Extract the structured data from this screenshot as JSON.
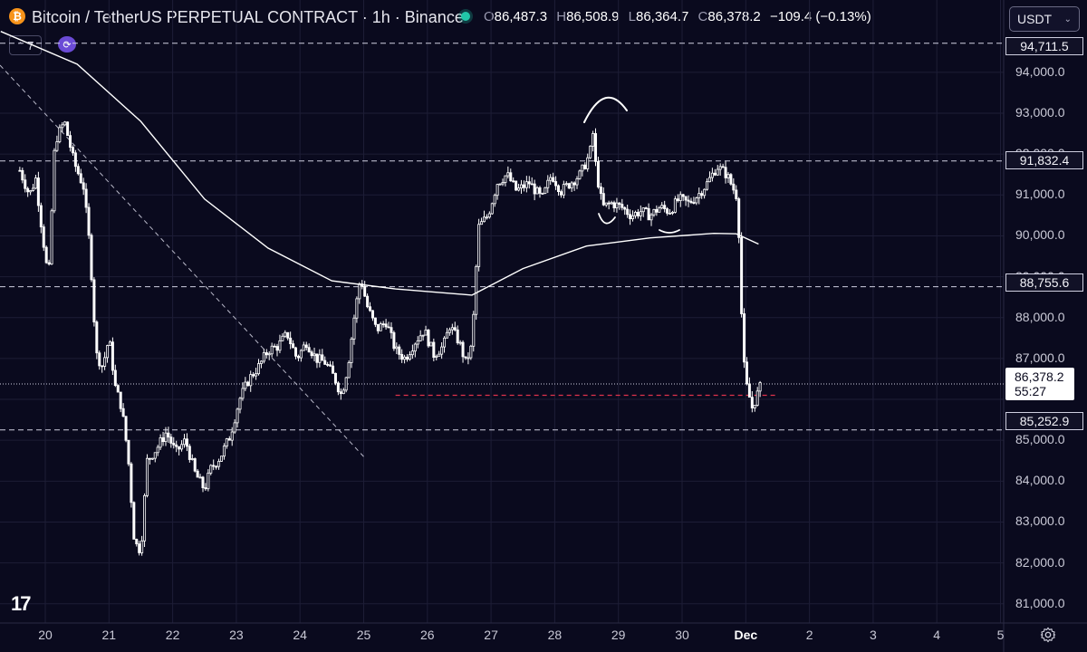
{
  "header": {
    "logo_glyph": "₿",
    "title": "Bitcoin / TetherUS PERPETUAL CONTRACT · 1h · Binance",
    "ohlc": [
      {
        "label": "O",
        "value": "86,487.3"
      },
      {
        "label": "H",
        "value": "86,508.9"
      },
      {
        "label": "L",
        "value": "86,364.7"
      },
      {
        "label": "C",
        "value": "86,378.2"
      }
    ],
    "change": "−109.4 (−0.13%)",
    "indicator_count": "7",
    "indicator_chevron": "⌃",
    "currency": "USDT",
    "currency_chevron": "⌄"
  },
  "price_axis": {
    "ticks": [
      "94,000.0",
      "93,000.0",
      "92,000.0",
      "91,000.0",
      "90,000.0",
      "89,000.0",
      "88,000.0",
      "87,000.0",
      "85,000.0",
      "84,000.0",
      "83,000.0",
      "82,000.0",
      "81,000.0"
    ],
    "level_labels": [
      "94,711.5",
      "91,832.4",
      "88,755.6",
      "85,252.9"
    ],
    "current_price": "86,378.2",
    "countdown": "55:27"
  },
  "time_axis": {
    "labels": [
      "20",
      "21",
      "22",
      "23",
      "24",
      "25",
      "26",
      "27",
      "28",
      "29",
      "30",
      "Dec",
      "2",
      "3",
      "4",
      "5"
    ],
    "bold_label": "Dec"
  },
  "watermark": "17",
  "colors": {
    "background": "#0a0a1e",
    "candles": "#ffffff",
    "moving_average": "#ffffff",
    "support_line": "#e0334b",
    "status_dot": "#21c7a8",
    "accent_icon": "#6b4bd6"
  },
  "chart_data": {
    "type": "candlestick",
    "symbol": "BTCUSDT.P",
    "timeframe": "1h",
    "ylim": [
      80600,
      95100
    ],
    "x": [
      "20",
      "21",
      "22",
      "23",
      "24",
      "25",
      "26",
      "27",
      "28",
      "29",
      "30",
      "Dec"
    ],
    "close_path": [
      [
        19.6,
        91600
      ],
      [
        19.75,
        91000
      ],
      [
        19.85,
        91400
      ],
      [
        19.95,
        90100
      ],
      [
        20.05,
        88900
      ],
      [
        20.15,
        92300
      ],
      [
        20.3,
        92800
      ],
      [
        20.45,
        91800
      ],
      [
        20.6,
        91200
      ],
      [
        20.7,
        89700
      ],
      [
        20.8,
        87100
      ],
      [
        20.9,
        86800
      ],
      [
        21.0,
        87500
      ],
      [
        21.1,
        86300
      ],
      [
        21.2,
        85800
      ],
      [
        21.3,
        84600
      ],
      [
        21.4,
        82500
      ],
      [
        21.5,
        82300
      ],
      [
        21.6,
        84500
      ],
      [
        21.75,
        84800
      ],
      [
        21.9,
        85200
      ],
      [
        22.05,
        84700
      ],
      [
        22.2,
        85000
      ],
      [
        22.35,
        84200
      ],
      [
        22.5,
        83800
      ],
      [
        22.6,
        84300
      ],
      [
        22.75,
        84600
      ],
      [
        22.9,
        85100
      ],
      [
        23.05,
        86000
      ],
      [
        23.2,
        86500
      ],
      [
        23.35,
        86800
      ],
      [
        23.5,
        87200
      ],
      [
        23.65,
        87300
      ],
      [
        23.8,
        87600
      ],
      [
        23.95,
        87000
      ],
      [
        24.1,
        87400
      ],
      [
        24.25,
        87000
      ],
      [
        24.4,
        86900
      ],
      [
        24.55,
        86500
      ],
      [
        24.65,
        86100
      ],
      [
        24.75,
        86800
      ],
      [
        24.85,
        88000
      ],
      [
        24.95,
        89000
      ],
      [
        25.05,
        88300
      ],
      [
        25.2,
        87700
      ],
      [
        25.35,
        87900
      ],
      [
        25.5,
        87200
      ],
      [
        25.65,
        87000
      ],
      [
        25.8,
        87400
      ],
      [
        25.95,
        87700
      ],
      [
        26.1,
        87100
      ],
      [
        26.25,
        87300
      ],
      [
        26.35,
        87800
      ],
      [
        26.5,
        87400
      ],
      [
        26.6,
        86900
      ],
      [
        26.7,
        87300
      ],
      [
        26.8,
        90200
      ],
      [
        26.95,
        90500
      ],
      [
        27.1,
        91300
      ],
      [
        27.25,
        91500
      ],
      [
        27.4,
        91100
      ],
      [
        27.6,
        91300
      ],
      [
        27.8,
        90900
      ],
      [
        27.95,
        91500
      ],
      [
        28.1,
        91100
      ],
      [
        28.25,
        91300
      ],
      [
        28.4,
        91500
      ],
      [
        28.55,
        92000
      ],
      [
        28.6,
        92500
      ],
      [
        28.65,
        91600
      ],
      [
        28.75,
        90700
      ],
      [
        28.9,
        90800
      ],
      [
        29.05,
        90700
      ],
      [
        29.2,
        90500
      ],
      [
        29.35,
        90600
      ],
      [
        29.5,
        90500
      ],
      [
        29.65,
        90700
      ],
      [
        29.8,
        90600
      ],
      [
        29.95,
        90900
      ],
      [
        30.1,
        90800
      ],
      [
        30.25,
        91000
      ],
      [
        30.4,
        91300
      ],
      [
        30.55,
        91700
      ],
      [
        30.7,
        91500
      ],
      [
        30.85,
        91000
      ],
      [
        30.9,
        89900
      ],
      [
        30.95,
        87200
      ],
      [
        31.0,
        86400
      ],
      [
        31.1,
        85800
      ],
      [
        31.2,
        86200
      ],
      [
        31.25,
        86378
      ]
    ],
    "moving_average": [
      [
        19.3,
        95000
      ],
      [
        20.5,
        94200
      ],
      [
        21.5,
        92800
      ],
      [
        22.5,
        90900
      ],
      [
        23.5,
        89700
      ],
      [
        24.5,
        88900
      ],
      [
        25.5,
        88700
      ],
      [
        26.7,
        88550
      ],
      [
        27.5,
        89200
      ],
      [
        28.5,
        89750
      ],
      [
        29.5,
        89950
      ],
      [
        30.5,
        90060
      ],
      [
        30.85,
        90050
      ],
      [
        31.2,
        89800
      ]
    ],
    "horizontal_levels": [
      94711.5,
      91832.4,
      88755.6,
      85252.9
    ],
    "current_price": 86378.2,
    "support_level": 86100,
    "trendline": [
      [
        19.5,
        89000
      ],
      [
        25.0,
        84600
      ]
    ]
  }
}
